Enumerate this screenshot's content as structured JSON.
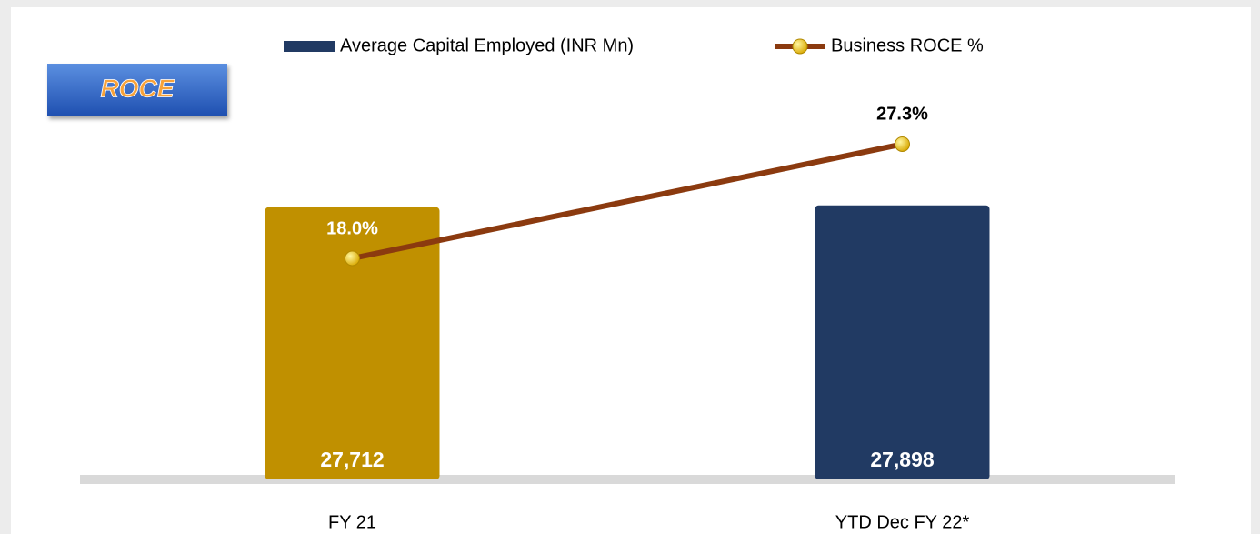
{
  "chart_data": {
    "type": "bar_line",
    "badge": "ROCE",
    "categories": [
      "FY 21",
      "YTD Dec FY 22*"
    ],
    "series": [
      {
        "name": "Average Capital Employed (INR Mn)",
        "type": "bar",
        "color": "#213a63",
        "colors": [
          "#c09000",
          "#213a63"
        ],
        "values": [
          27712,
          27898
        ],
        "value_labels": [
          "27,712",
          "27,898"
        ]
      },
      {
        "name": "Business ROCE %",
        "type": "line",
        "axis": "y2",
        "color": "#8b3a0f",
        "marker_color": "#f2c200",
        "values": [
          18.0,
          27.3
        ],
        "value_labels": [
          "18.0%",
          "27.3%"
        ]
      }
    ],
    "ylim": [
      0,
      40000
    ],
    "y2lim": [
      0,
      32
    ],
    "legend": "top"
  }
}
